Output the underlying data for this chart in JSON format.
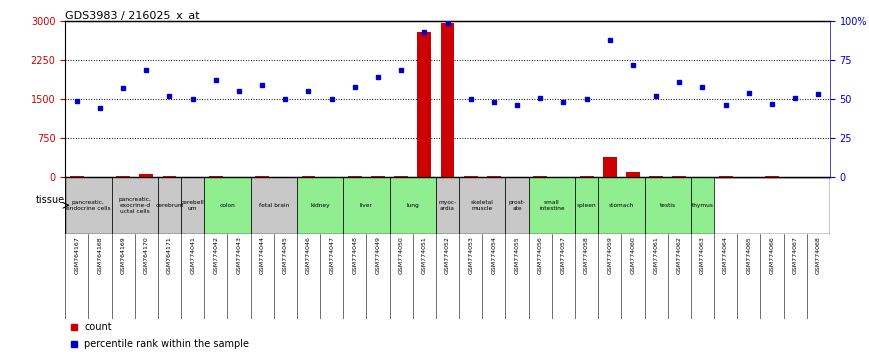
{
  "title": "GDS3983 / 216025_x_at",
  "samples": [
    "GSM764167",
    "GSM764168",
    "GSM764169",
    "GSM764170",
    "GSM764171",
    "GSM774041",
    "GSM774042",
    "GSM774043",
    "GSM774044",
    "GSM774045",
    "GSM774046",
    "GSM774047",
    "GSM774048",
    "GSM774049",
    "GSM774050",
    "GSM774051",
    "GSM774052",
    "GSM774053",
    "GSM774054",
    "GSM774055",
    "GSM774056",
    "GSM774057",
    "GSM774058",
    "GSM774059",
    "GSM774060",
    "GSM774061",
    "GSM774062",
    "GSM774063",
    "GSM774064",
    "GSM774065",
    "GSM774066",
    "GSM774067",
    "GSM774068"
  ],
  "count_values": [
    10,
    8,
    15,
    55,
    12,
    8,
    10,
    8,
    10,
    8,
    10,
    8,
    10,
    12,
    10,
    2800,
    2970,
    10,
    12,
    8,
    10,
    8,
    10,
    380,
    90,
    10,
    10,
    8,
    10,
    8,
    10,
    8,
    8
  ],
  "percentile_values": [
    49,
    44,
    57,
    69,
    52,
    50,
    62,
    55,
    59,
    50,
    55,
    50,
    58,
    64,
    69,
    93,
    99,
    50,
    48,
    46,
    51,
    48,
    50,
    88,
    72,
    52,
    61,
    58,
    46,
    54,
    47,
    51,
    53
  ],
  "tissues": [
    {
      "label": "pancreatic,\nendocrine cells",
      "start": 0,
      "end": 2,
      "color": "#c8c8c8"
    },
    {
      "label": "pancreatic,\nexocrine-d\nuctal cells",
      "start": 2,
      "end": 4,
      "color": "#c8c8c8"
    },
    {
      "label": "cerebrum",
      "start": 4,
      "end": 5,
      "color": "#c8c8c8"
    },
    {
      "label": "cerebell\num",
      "start": 5,
      "end": 6,
      "color": "#c8c8c8"
    },
    {
      "label": "colon",
      "start": 6,
      "end": 8,
      "color": "#90ee90"
    },
    {
      "label": "fetal brain",
      "start": 8,
      "end": 10,
      "color": "#c8c8c8"
    },
    {
      "label": "kidney",
      "start": 10,
      "end": 12,
      "color": "#90ee90"
    },
    {
      "label": "liver",
      "start": 12,
      "end": 14,
      "color": "#90ee90"
    },
    {
      "label": "lung",
      "start": 14,
      "end": 16,
      "color": "#90ee90"
    },
    {
      "label": "myoc-\nardia",
      "start": 16,
      "end": 17,
      "color": "#c8c8c8"
    },
    {
      "label": "skeletal\nmuscle",
      "start": 17,
      "end": 19,
      "color": "#c8c8c8"
    },
    {
      "label": "prost-\nate",
      "start": 19,
      "end": 20,
      "color": "#c8c8c8"
    },
    {
      "label": "small\nintestine",
      "start": 20,
      "end": 22,
      "color": "#90ee90"
    },
    {
      "label": "spleen",
      "start": 22,
      "end": 23,
      "color": "#90ee90"
    },
    {
      "label": "stomach",
      "start": 23,
      "end": 25,
      "color": "#90ee90"
    },
    {
      "label": "testis",
      "start": 25,
      "end": 27,
      "color": "#90ee90"
    },
    {
      "label": "thymus",
      "start": 27,
      "end": 28,
      "color": "#90ee90"
    }
  ],
  "ylim_left": [
    0,
    3000
  ],
  "ylim_right": [
    0,
    100
  ],
  "yticks_left": [
    0,
    750,
    1500,
    2250,
    3000
  ],
  "yticks_right": [
    0,
    25,
    50,
    75,
    100
  ],
  "count_color": "#cc0000",
  "percentile_color": "#0000cc",
  "bg_color": "#ffffff",
  "dotted_line_color": "#000000",
  "legend_count": "count",
  "legend_percentile": "percentile rank within the sample"
}
